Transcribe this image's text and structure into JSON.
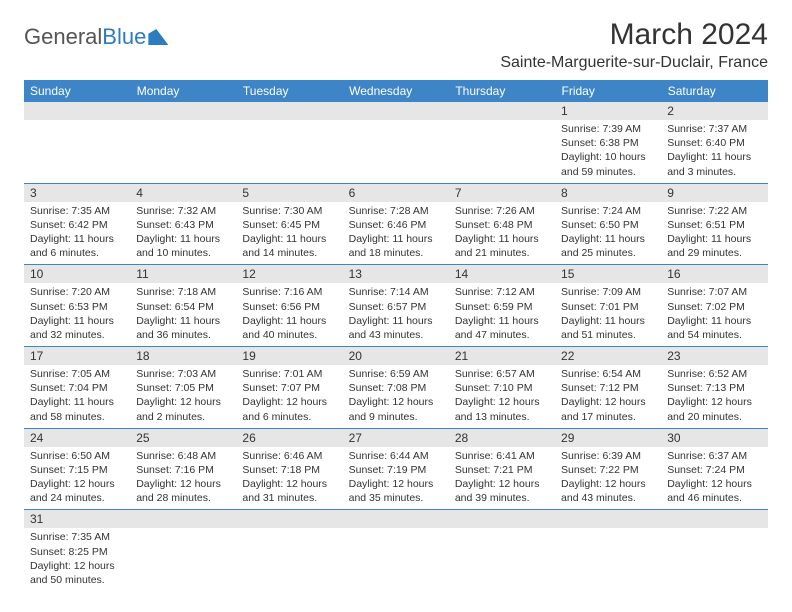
{
  "brand": {
    "part1": "General",
    "part2": "Blue"
  },
  "title": "March 2024",
  "location": "Sainte-Marguerite-sur-Duclair, France",
  "colors": {
    "header_bg": "#3d85c6",
    "header_text": "#ffffff",
    "daynum_bg": "#e6e6e6",
    "border": "#3d85c6",
    "text": "#333333",
    "brand_blue": "#2e7cc0"
  },
  "weekdays": [
    "Sunday",
    "Monday",
    "Tuesday",
    "Wednesday",
    "Thursday",
    "Friday",
    "Saturday"
  ],
  "sunrise_label": "Sunrise: ",
  "sunset_label": "Sunset: ",
  "daylight_label": "Daylight: ",
  "weeks": [
    [
      null,
      null,
      null,
      null,
      null,
      {
        "n": "1",
        "sr": "7:39 AM",
        "ss": "6:38 PM",
        "dl": "10 hours and 59 minutes."
      },
      {
        "n": "2",
        "sr": "7:37 AM",
        "ss": "6:40 PM",
        "dl": "11 hours and 3 minutes."
      }
    ],
    [
      {
        "n": "3",
        "sr": "7:35 AM",
        "ss": "6:42 PM",
        "dl": "11 hours and 6 minutes."
      },
      {
        "n": "4",
        "sr": "7:32 AM",
        "ss": "6:43 PM",
        "dl": "11 hours and 10 minutes."
      },
      {
        "n": "5",
        "sr": "7:30 AM",
        "ss": "6:45 PM",
        "dl": "11 hours and 14 minutes."
      },
      {
        "n": "6",
        "sr": "7:28 AM",
        "ss": "6:46 PM",
        "dl": "11 hours and 18 minutes."
      },
      {
        "n": "7",
        "sr": "7:26 AM",
        "ss": "6:48 PM",
        "dl": "11 hours and 21 minutes."
      },
      {
        "n": "8",
        "sr": "7:24 AM",
        "ss": "6:50 PM",
        "dl": "11 hours and 25 minutes."
      },
      {
        "n": "9",
        "sr": "7:22 AM",
        "ss": "6:51 PM",
        "dl": "11 hours and 29 minutes."
      }
    ],
    [
      {
        "n": "10",
        "sr": "7:20 AM",
        "ss": "6:53 PM",
        "dl": "11 hours and 32 minutes."
      },
      {
        "n": "11",
        "sr": "7:18 AM",
        "ss": "6:54 PM",
        "dl": "11 hours and 36 minutes."
      },
      {
        "n": "12",
        "sr": "7:16 AM",
        "ss": "6:56 PM",
        "dl": "11 hours and 40 minutes."
      },
      {
        "n": "13",
        "sr": "7:14 AM",
        "ss": "6:57 PM",
        "dl": "11 hours and 43 minutes."
      },
      {
        "n": "14",
        "sr": "7:12 AM",
        "ss": "6:59 PM",
        "dl": "11 hours and 47 minutes."
      },
      {
        "n": "15",
        "sr": "7:09 AM",
        "ss": "7:01 PM",
        "dl": "11 hours and 51 minutes."
      },
      {
        "n": "16",
        "sr": "7:07 AM",
        "ss": "7:02 PM",
        "dl": "11 hours and 54 minutes."
      }
    ],
    [
      {
        "n": "17",
        "sr": "7:05 AM",
        "ss": "7:04 PM",
        "dl": "11 hours and 58 minutes."
      },
      {
        "n": "18",
        "sr": "7:03 AM",
        "ss": "7:05 PM",
        "dl": "12 hours and 2 minutes."
      },
      {
        "n": "19",
        "sr": "7:01 AM",
        "ss": "7:07 PM",
        "dl": "12 hours and 6 minutes."
      },
      {
        "n": "20",
        "sr": "6:59 AM",
        "ss": "7:08 PM",
        "dl": "12 hours and 9 minutes."
      },
      {
        "n": "21",
        "sr": "6:57 AM",
        "ss": "7:10 PM",
        "dl": "12 hours and 13 minutes."
      },
      {
        "n": "22",
        "sr": "6:54 AM",
        "ss": "7:12 PM",
        "dl": "12 hours and 17 minutes."
      },
      {
        "n": "23",
        "sr": "6:52 AM",
        "ss": "7:13 PM",
        "dl": "12 hours and 20 minutes."
      }
    ],
    [
      {
        "n": "24",
        "sr": "6:50 AM",
        "ss": "7:15 PM",
        "dl": "12 hours and 24 minutes."
      },
      {
        "n": "25",
        "sr": "6:48 AM",
        "ss": "7:16 PM",
        "dl": "12 hours and 28 minutes."
      },
      {
        "n": "26",
        "sr": "6:46 AM",
        "ss": "7:18 PM",
        "dl": "12 hours and 31 minutes."
      },
      {
        "n": "27",
        "sr": "6:44 AM",
        "ss": "7:19 PM",
        "dl": "12 hours and 35 minutes."
      },
      {
        "n": "28",
        "sr": "6:41 AM",
        "ss": "7:21 PM",
        "dl": "12 hours and 39 minutes."
      },
      {
        "n": "29",
        "sr": "6:39 AM",
        "ss": "7:22 PM",
        "dl": "12 hours and 43 minutes."
      },
      {
        "n": "30",
        "sr": "6:37 AM",
        "ss": "7:24 PM",
        "dl": "12 hours and 46 minutes."
      }
    ],
    [
      {
        "n": "31",
        "sr": "7:35 AM",
        "ss": "8:25 PM",
        "dl": "12 hours and 50 minutes."
      },
      null,
      null,
      null,
      null,
      null,
      null
    ]
  ]
}
